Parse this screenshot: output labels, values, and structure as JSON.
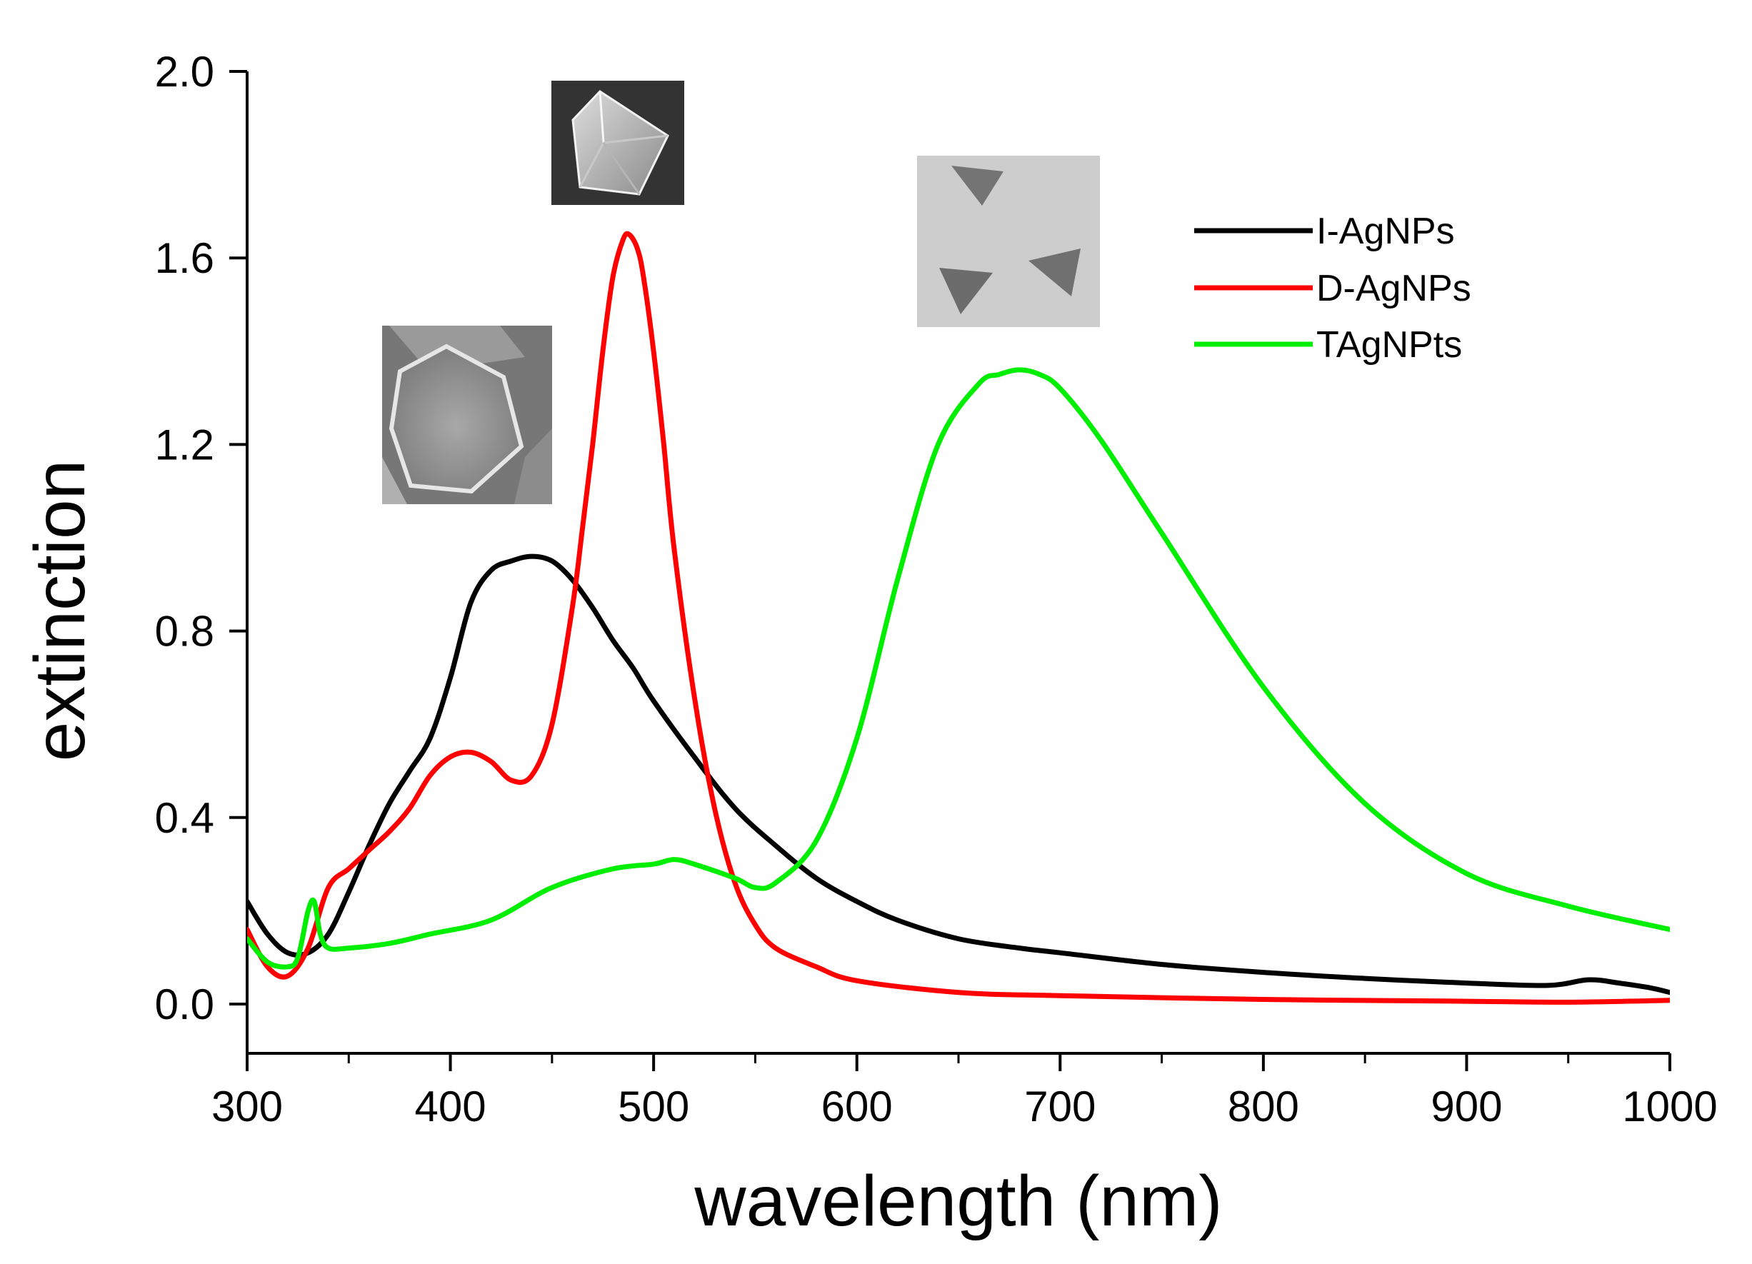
{
  "chart_data": {
    "type": "line",
    "title": "",
    "xlabel": "wavelength (nm)",
    "ylabel": "extinction",
    "xlim": [
      300,
      1000
    ],
    "ylim": [
      -0.1,
      2.0
    ],
    "xticks": [
      300,
      400,
      500,
      600,
      700,
      800,
      900,
      1000
    ],
    "xtick_labels": [
      "300",
      "400",
      "500",
      "600",
      "700",
      "800",
      "900",
      "1000"
    ],
    "yticks": [
      0.0,
      0.4,
      0.8,
      1.2,
      1.6,
      2.0
    ],
    "ytick_labels": [
      "0.0",
      "0.4",
      "0.8",
      "1.2",
      "1.6",
      "2.0"
    ],
    "legend_position": "top-right",
    "insets": [
      {
        "name": "icosahedral-nanoparticle-micrograph",
        "series": "I-AgNPs"
      },
      {
        "name": "decahedral-nanoparticle-micrograph",
        "series": "D-AgNPs"
      },
      {
        "name": "triangular-nanoplate-micrograph",
        "series": "TAgNPts"
      }
    ],
    "series": [
      {
        "name": "I-AgNPs",
        "color": "#000000",
        "x": [
          300,
          310,
          320,
          330,
          340,
          350,
          360,
          370,
          380,
          390,
          400,
          410,
          420,
          430,
          440,
          450,
          460,
          470,
          480,
          490,
          500,
          520,
          540,
          560,
          580,
          600,
          620,
          650,
          680,
          700,
          750,
          800,
          850,
          900,
          940,
          960,
          975,
          990,
          1000
        ],
        "values": [
          0.22,
          0.15,
          0.11,
          0.11,
          0.15,
          0.24,
          0.34,
          0.43,
          0.5,
          0.57,
          0.7,
          0.86,
          0.93,
          0.95,
          0.96,
          0.95,
          0.91,
          0.85,
          0.78,
          0.72,
          0.65,
          0.53,
          0.42,
          0.34,
          0.27,
          0.22,
          0.18,
          0.14,
          0.12,
          0.11,
          0.085,
          0.068,
          0.055,
          0.045,
          0.04,
          0.052,
          0.045,
          0.035,
          0.025
        ]
      },
      {
        "name": "D-AgNPs",
        "color": "#ff0000",
        "x": [
          300,
          310,
          320,
          330,
          340,
          350,
          360,
          370,
          380,
          390,
          400,
          410,
          420,
          430,
          440,
          450,
          460,
          465,
          470,
          475,
          480,
          485,
          488,
          492,
          495,
          500,
          505,
          510,
          520,
          530,
          540,
          550,
          560,
          580,
          600,
          650,
          700,
          800,
          900,
          950,
          1000
        ],
        "values": [
          0.16,
          0.08,
          0.06,
          0.12,
          0.25,
          0.29,
          0.33,
          0.37,
          0.42,
          0.49,
          0.53,
          0.54,
          0.52,
          0.48,
          0.49,
          0.6,
          0.85,
          1.02,
          1.2,
          1.4,
          1.56,
          1.64,
          1.65,
          1.62,
          1.56,
          1.4,
          1.2,
          0.98,
          0.66,
          0.42,
          0.26,
          0.17,
          0.12,
          0.08,
          0.05,
          0.025,
          0.018,
          0.01,
          0.006,
          0.004,
          0.008
        ]
      },
      {
        "name": "TAgNPts",
        "color": "#00ee00",
        "x": [
          300,
          310,
          320,
          325,
          330,
          333,
          336,
          340,
          350,
          370,
          390,
          420,
          450,
          480,
          500,
          510,
          520,
          540,
          550,
          560,
          580,
          600,
          620,
          640,
          660,
          670,
          680,
          690,
          700,
          720,
          750,
          800,
          850,
          900,
          950,
          1000
        ],
        "values": [
          0.14,
          0.09,
          0.08,
          0.1,
          0.2,
          0.22,
          0.15,
          0.12,
          0.12,
          0.13,
          0.15,
          0.18,
          0.25,
          0.29,
          0.3,
          0.31,
          0.3,
          0.27,
          0.25,
          0.26,
          0.35,
          0.57,
          0.91,
          1.2,
          1.33,
          1.35,
          1.36,
          1.35,
          1.32,
          1.21,
          1.01,
          0.68,
          0.43,
          0.28,
          0.21,
          0.16
        ]
      }
    ]
  }
}
